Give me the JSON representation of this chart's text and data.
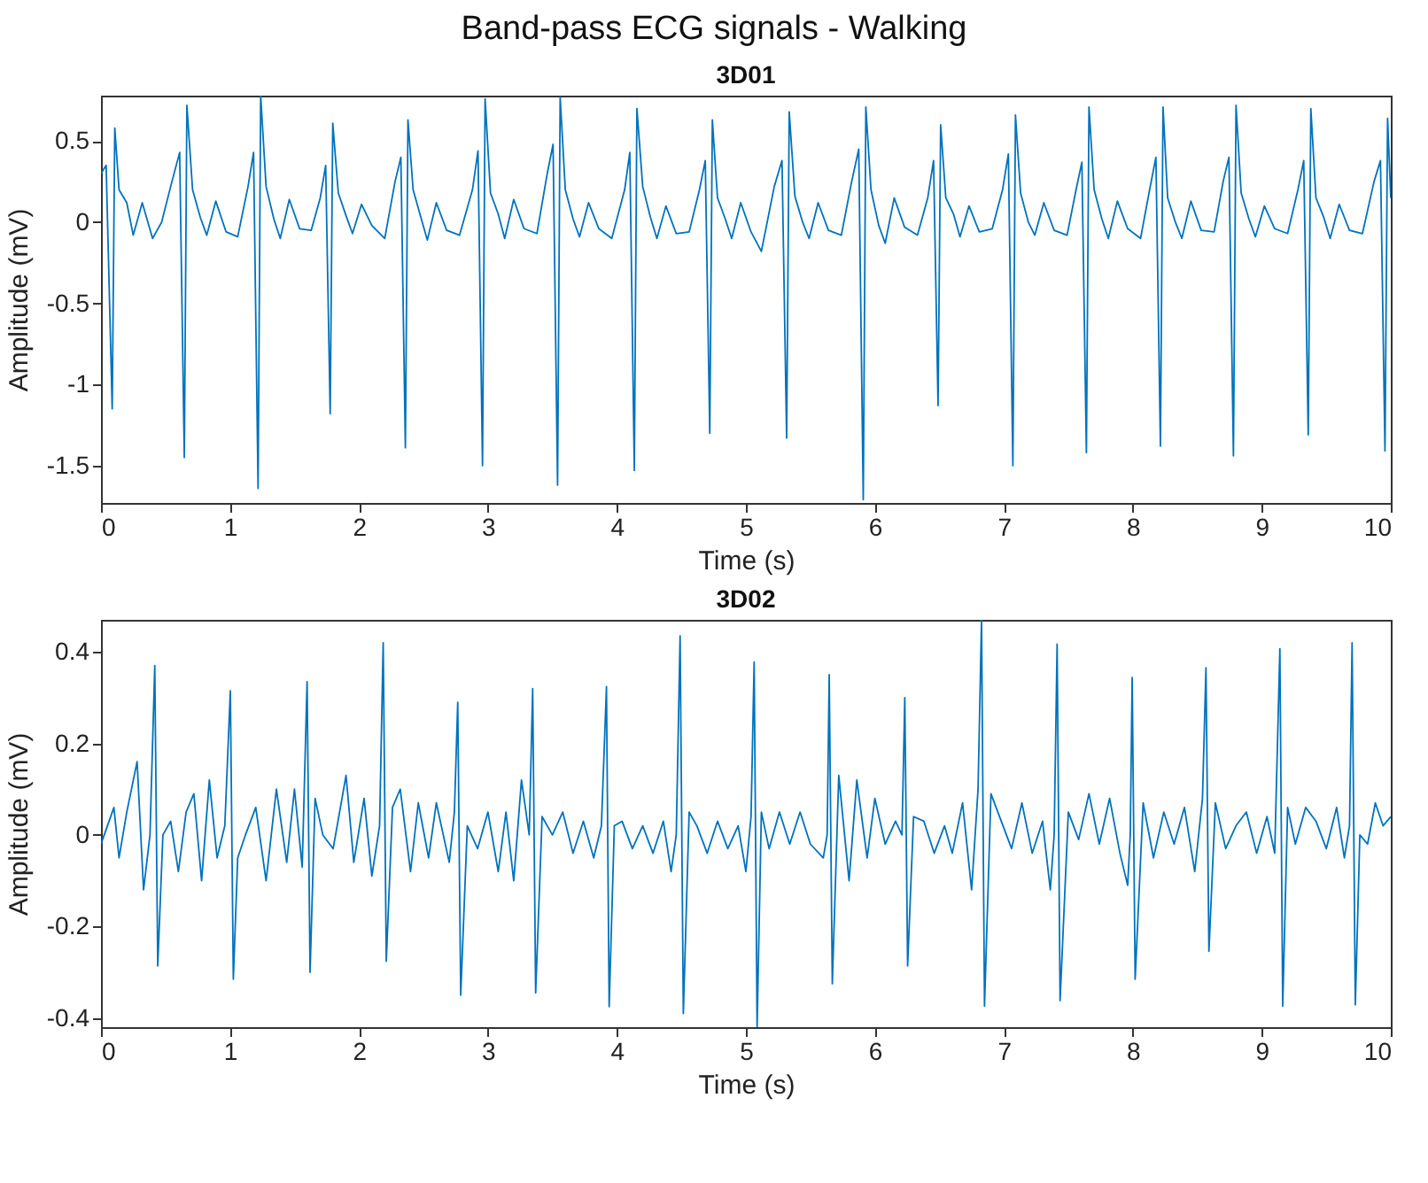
{
  "chart_data": [
    {
      "type": "line",
      "title": "Band-pass ECG signals - Walking",
      "subtitle": "3D01",
      "xlabel": "Time (s)",
      "ylabel": "Amplitude (mV)",
      "xlim": [
        0,
        10
      ],
      "ylim": [
        -1.73,
        0.78
      ],
      "xticks": [
        0,
        1,
        2,
        3,
        4,
        5,
        6,
        7,
        8,
        9,
        10
      ],
      "yticks": [
        -1.5,
        -1,
        -0.5,
        0,
        0.5
      ],
      "series": [
        {
          "color": "#0072bd",
          "x": [
            0,
            0.04,
            0.087,
            0.107,
            0.14,
            0.2,
            0.25,
            0.32,
            0.4,
            0.47,
            0.55,
            0.61,
            0.646,
            0.666,
            0.71,
            0.77,
            0.82,
            0.89,
            0.97,
            1.06,
            1.14,
            1.183,
            1.218,
            1.238,
            1.28,
            1.34,
            1.39,
            1.46,
            1.54,
            1.63,
            1.7,
            1.742,
            1.777,
            1.797,
            1.84,
            1.9,
            1.95,
            2.02,
            2.1,
            2.2,
            2.28,
            2.325,
            2.36,
            2.38,
            2.42,
            2.48,
            2.53,
            2.6,
            2.68,
            2.78,
            2.88,
            2.923,
            2.958,
            2.978,
            3.02,
            3.08,
            3.13,
            3.2,
            3.28,
            3.38,
            3.46,
            3.505,
            3.54,
            3.56,
            3.6,
            3.66,
            3.71,
            3.78,
            3.86,
            3.96,
            4.06,
            4.1,
            4.135,
            4.155,
            4.2,
            4.26,
            4.31,
            4.38,
            4.46,
            4.56,
            4.64,
            4.685,
            4.72,
            4.74,
            4.78,
            4.84,
            4.89,
            4.96,
            5.04,
            5.12,
            5.22,
            5.28,
            5.316,
            5.336,
            5.38,
            5.44,
            5.49,
            5.56,
            5.64,
            5.74,
            5.82,
            5.875,
            5.91,
            5.93,
            5.97,
            6.03,
            6.08,
            6.15,
            6.23,
            6.33,
            6.41,
            6.455,
            6.49,
            6.51,
            6.55,
            6.61,
            6.66,
            6.73,
            6.81,
            6.91,
            6.99,
            7.035,
            7.07,
            7.09,
            7.13,
            7.19,
            7.24,
            7.31,
            7.39,
            7.49,
            7.56,
            7.605,
            7.64,
            7.66,
            7.7,
            7.76,
            7.81,
            7.88,
            7.96,
            8.06,
            8.13,
            8.179,
            8.214,
            8.234,
            8.27,
            8.33,
            8.38,
            8.45,
            8.53,
            8.63,
            8.7,
            8.745,
            8.78,
            8.8,
            8.84,
            8.9,
            8.95,
            9.02,
            9.1,
            9.2,
            9.28,
            9.325,
            9.36,
            9.38,
            9.42,
            9.48,
            9.53,
            9.6,
            9.68,
            9.78,
            9.87,
            9.92,
            9.955,
            9.975,
            10
          ],
          "values": [
            0.3,
            0.35,
            -1.15,
            0.58,
            0.2,
            0.12,
            -0.08,
            0.12,
            -0.1,
            0.0,
            0.25,
            0.43,
            -1.45,
            0.72,
            0.2,
            0.03,
            -0.08,
            0.13,
            -0.06,
            -0.09,
            0.22,
            0.43,
            -1.64,
            0.78,
            0.22,
            0.02,
            -0.1,
            0.14,
            -0.04,
            -0.05,
            0.15,
            0.35,
            -1.18,
            0.61,
            0.18,
            0.04,
            -0.07,
            0.11,
            -0.02,
            -0.1,
            0.25,
            0.4,
            -1.39,
            0.63,
            0.2,
            0.03,
            -0.11,
            0.12,
            -0.05,
            -0.08,
            0.2,
            0.44,
            -1.5,
            0.76,
            0.18,
            0.05,
            -0.1,
            0.14,
            -0.04,
            -0.07,
            0.3,
            0.48,
            -1.62,
            0.77,
            0.2,
            0.02,
            -0.09,
            0.12,
            -0.04,
            -0.1,
            0.2,
            0.43,
            -1.53,
            0.7,
            0.22,
            0.03,
            -0.1,
            0.1,
            -0.07,
            -0.06,
            0.2,
            0.38,
            -1.3,
            0.63,
            0.15,
            0.02,
            -0.1,
            0.12,
            -0.06,
            -0.18,
            0.22,
            0.38,
            -1.33,
            0.68,
            0.16,
            0.0,
            -0.1,
            0.12,
            -0.05,
            -0.08,
            0.25,
            0.45,
            -1.71,
            0.71,
            0.2,
            -0.02,
            -0.13,
            0.15,
            -0.03,
            -0.08,
            0.15,
            0.38,
            -1.13,
            0.6,
            0.15,
            0.05,
            -0.09,
            0.1,
            -0.06,
            -0.04,
            0.2,
            0.42,
            -1.5,
            0.66,
            0.18,
            0.0,
            -0.08,
            0.12,
            -0.05,
            -0.08,
            0.2,
            0.37,
            -1.42,
            0.71,
            0.2,
            0.02,
            -0.1,
            0.13,
            -0.04,
            -0.1,
            0.2,
            0.4,
            -1.38,
            0.71,
            0.15,
            0.0,
            -0.1,
            0.13,
            -0.05,
            -0.06,
            0.25,
            0.4,
            -1.44,
            0.72,
            0.18,
            0.02,
            -0.09,
            0.1,
            -0.04,
            -0.07,
            0.2,
            0.38,
            -1.31,
            0.7,
            0.15,
            0.03,
            -0.1,
            0.11,
            -0.05,
            -0.07,
            0.25,
            0.38,
            -1.41,
            0.64,
            0.15
          ]
        }
      ]
    },
    {
      "type": "line",
      "title": "3D02",
      "xlabel": "Time (s)",
      "ylabel": "Amplitude (mV)",
      "xlim": [
        0,
        10
      ],
      "ylim": [
        -0.42,
        0.47
      ],
      "xticks": [
        0,
        1,
        2,
        3,
        4,
        5,
        6,
        7,
        8,
        9,
        10
      ],
      "yticks": [
        -0.4,
        -0.2,
        0,
        0.2,
        0.4
      ],
      "series": [
        {
          "color": "#0072bd",
          "x": [
            0,
            0.05,
            0.1,
            0.14,
            0.2,
            0.28,
            0.33,
            0.38,
            0.417,
            0.44,
            0.48,
            0.54,
            0.6,
            0.66,
            0.72,
            0.78,
            0.84,
            0.9,
            0.96,
            1.003,
            1.026,
            1.06,
            1.12,
            1.2,
            1.28,
            1.36,
            1.44,
            1.5,
            1.56,
            1.598,
            1.621,
            1.66,
            1.72,
            1.8,
            1.9,
            1.96,
            2.04,
            2.1,
            2.16,
            2.188,
            2.212,
            2.26,
            2.32,
            2.4,
            2.46,
            2.54,
            2.6,
            2.7,
            2.74,
            2.766,
            2.789,
            2.84,
            2.92,
            3.0,
            3.08,
            3.14,
            3.2,
            3.26,
            3.32,
            3.347,
            3.37,
            3.42,
            3.5,
            3.58,
            3.66,
            3.74,
            3.82,
            3.88,
            3.919,
            3.94,
            3.98,
            4.04,
            4.12,
            4.2,
            4.28,
            4.36,
            4.42,
            4.46,
            4.49,
            4.515,
            4.56,
            4.62,
            4.7,
            4.78,
            4.86,
            4.94,
            5.0,
            5.04,
            5.064,
            5.087,
            5.12,
            5.18,
            5.26,
            5.34,
            5.42,
            5.5,
            5.6,
            5.63,
            5.646,
            5.67,
            5.72,
            5.8,
            5.86,
            5.94,
            6.0,
            6.08,
            6.16,
            6.21,
            6.232,
            6.254,
            6.3,
            6.38,
            6.46,
            6.54,
            6.6,
            6.68,
            6.75,
            6.8,
            6.827,
            6.85,
            6.9,
            6.98,
            7.06,
            7.14,
            7.22,
            7.3,
            7.36,
            7.39,
            7.413,
            7.436,
            7.5,
            7.58,
            7.66,
            7.74,
            7.82,
            7.9,
            7.96,
            7.98,
            7.995,
            8.018,
            8.08,
            8.16,
            8.24,
            8.32,
            8.4,
            8.48,
            8.54,
            8.567,
            8.59,
            8.64,
            8.72,
            8.8,
            8.88,
            8.96,
            9.04,
            9.1,
            9.14,
            9.162,
            9.2,
            9.26,
            9.34,
            9.42,
            9.5,
            9.58,
            9.64,
            9.68,
            9.7,
            9.725,
            9.76,
            9.82,
            9.88,
            9.94,
            10
          ],
          "values": [
            -0.02,
            0.02,
            0.06,
            -0.05,
            0.05,
            0.16,
            -0.12,
            0.0,
            0.37,
            -0.286,
            0.0,
            0.03,
            -0.08,
            0.05,
            0.09,
            -0.1,
            0.12,
            -0.05,
            0.02,
            0.315,
            -0.315,
            -0.05,
            0.0,
            0.06,
            -0.1,
            0.1,
            -0.06,
            0.1,
            -0.07,
            0.335,
            -0.3,
            0.08,
            0.0,
            -0.03,
            0.13,
            -0.06,
            0.08,
            -0.09,
            0.02,
            0.42,
            -0.276,
            0.06,
            0.1,
            -0.08,
            0.07,
            -0.05,
            0.07,
            -0.06,
            0.05,
            0.29,
            -0.35,
            0.02,
            -0.03,
            0.05,
            -0.08,
            0.05,
            -0.1,
            0.12,
            0.0,
            0.32,
            -0.345,
            0.04,
            0.0,
            0.05,
            -0.04,
            0.03,
            -0.05,
            0.02,
            0.324,
            -0.375,
            0.02,
            0.03,
            -0.03,
            0.02,
            -0.04,
            0.03,
            -0.08,
            0.0,
            0.435,
            -0.39,
            0.05,
            0.02,
            -0.04,
            0.03,
            -0.03,
            0.02,
            -0.08,
            0.04,
            0.378,
            -0.42,
            0.05,
            -0.03,
            0.05,
            -0.02,
            0.05,
            -0.02,
            -0.05,
            0.0,
            0.35,
            -0.325,
            0.13,
            -0.1,
            0.12,
            -0.05,
            0.08,
            -0.02,
            0.03,
            0.0,
            0.3,
            -0.286,
            0.04,
            0.03,
            -0.04,
            0.02,
            -0.04,
            0.07,
            -0.12,
            0.1,
            0.47,
            -0.374,
            0.09,
            0.03,
            -0.03,
            0.07,
            -0.04,
            0.03,
            -0.12,
            0.0,
            0.417,
            -0.362,
            0.05,
            -0.01,
            0.09,
            -0.02,
            0.08,
            -0.04,
            -0.11,
            0.0,
            0.344,
            -0.315,
            0.07,
            -0.05,
            0.05,
            -0.02,
            0.06,
            -0.08,
            0.08,
            0.365,
            -0.254,
            0.07,
            -0.03,
            0.02,
            0.05,
            -0.04,
            0.04,
            -0.04,
            0.407,
            -0.374,
            0.06,
            -0.02,
            0.06,
            0.03,
            -0.03,
            0.06,
            -0.05,
            0.02,
            0.42,
            -0.371,
            0.0,
            -0.02,
            0.07,
            0.02,
            0.04
          ]
        }
      ]
    }
  ]
}
